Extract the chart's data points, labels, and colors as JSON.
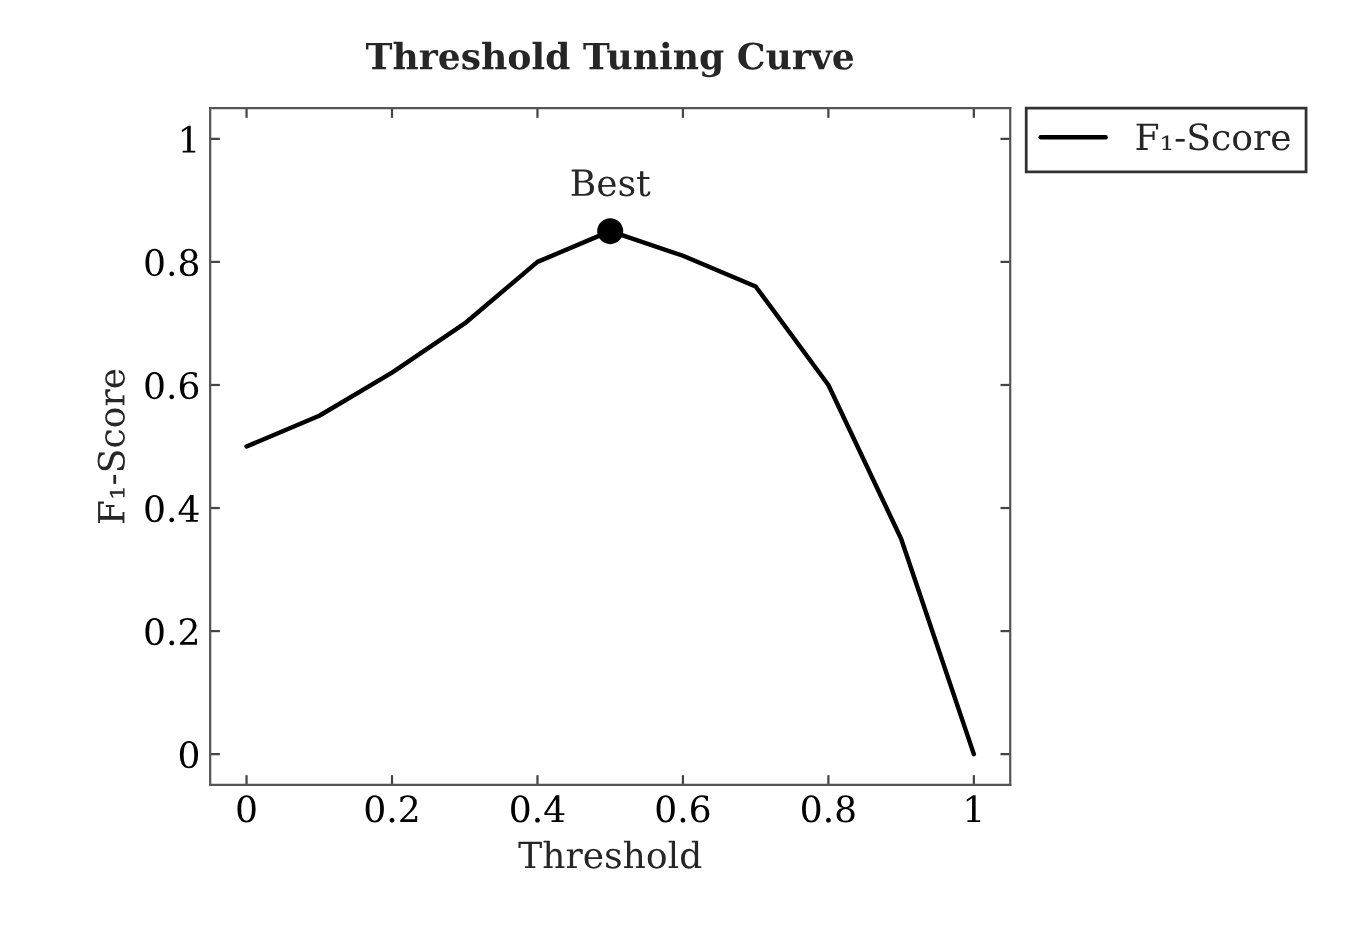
{
  "chart_data": {
    "type": "line",
    "title": "Threshold Tuning Curve",
    "xlabel": "Threshold",
    "ylabel": "F₁-Score",
    "x": [
      0,
      0.1,
      0.2,
      0.3,
      0.4,
      0.5,
      0.6,
      0.7,
      0.8,
      0.9,
      1.0
    ],
    "series": [
      {
        "name": "F₁-Score",
        "color": "#000000",
        "values": [
          0.5,
          0.55,
          0.62,
          0.7,
          0.8,
          0.85,
          0.81,
          0.76,
          0.6,
          0.35,
          0.0
        ]
      },
      {
        "type": "scatter",
        "color": "#000000",
        "x": [
          0.5
        ],
        "values": [
          0.85
        ],
        "marker": "circle"
      }
    ],
    "annotations": [
      {
        "text": "Best",
        "x": 0.5,
        "y": 0.85
      }
    ],
    "xlim": [
      -0.05,
      1.05
    ],
    "ylim": [
      -0.05,
      1.05
    ],
    "xticks": [
      0,
      0.2,
      0.4,
      0.6,
      0.8,
      1
    ],
    "yticks": [
      0,
      0.2,
      0.4,
      0.6,
      0.8,
      1
    ],
    "grid": false,
    "legend": "top right",
    "marker": "none",
    "line_style": "solid"
  }
}
